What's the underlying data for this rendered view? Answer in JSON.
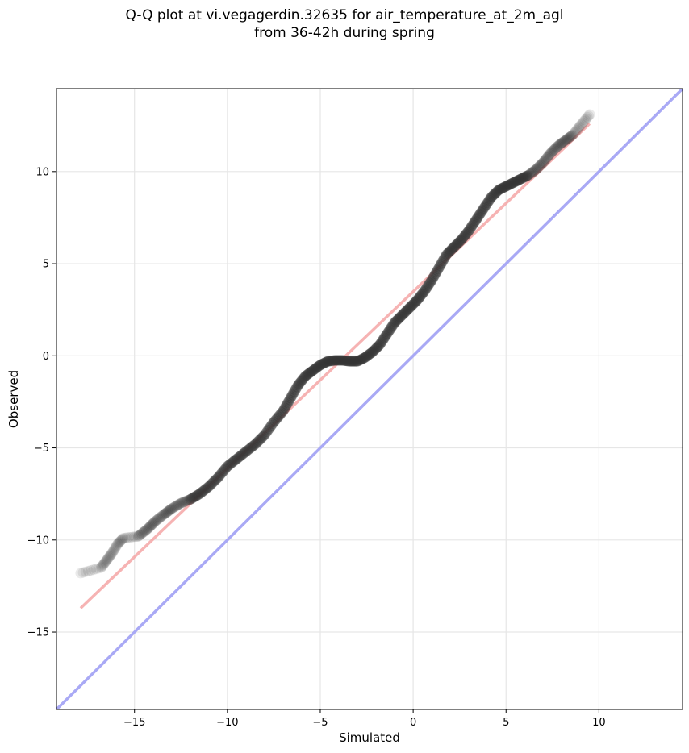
{
  "title": {
    "line1": "Q-Q plot at vi.vegagerdin.32635 for air_temperature_at_2m_agl",
    "line2": "from 36-42h during spring"
  },
  "chart_data": {
    "type": "scatter",
    "xlabel": "Simulated",
    "ylabel": "Observed",
    "xlim": [
      -19.2,
      14.5
    ],
    "ylim": [
      -19.2,
      14.5
    ],
    "xticks": [
      -15,
      -10,
      -5,
      0,
      5,
      10
    ],
    "yticks": [
      -15,
      -10,
      -5,
      0,
      5,
      10
    ],
    "xtick_labels": [
      "−15",
      "−10",
      "−5",
      "0",
      "5",
      "10"
    ],
    "ytick_labels": [
      "−15",
      "−10",
      "−5",
      "0",
      "5",
      "10"
    ],
    "grid": true,
    "points": {
      "x": [
        -17.9,
        -16.8,
        -16.5,
        -16.2,
        -15.9,
        -15.6,
        -14.8,
        -14.3,
        -13.9,
        -13.4,
        -13.0,
        -12.5,
        -12.0,
        -11.5,
        -11.0,
        -10.5,
        -10.0,
        -9.5,
        -9.0,
        -8.5,
        -8.0,
        -7.5,
        -7.0,
        -6.6,
        -6.2,
        -5.8,
        -5.4,
        -5.0,
        -4.6,
        -4.2,
        -3.8,
        -3.4,
        -3.0,
        -2.6,
        -2.2,
        -1.8,
        -1.4,
        -1.0,
        -0.6,
        -0.2,
        0.2,
        0.6,
        1.0,
        1.4,
        1.8,
        2.2,
        2.6,
        3.0,
        3.4,
        3.8,
        4.2,
        4.6,
        5.0,
        5.4,
        5.8,
        6.2,
        6.6,
        7.0,
        7.4,
        7.8,
        8.2,
        8.6,
        9.0,
        9.5
      ],
      "y": [
        -11.8,
        -11.5,
        -11.1,
        -10.7,
        -10.2,
        -9.9,
        -9.8,
        -9.4,
        -9.0,
        -8.6,
        -8.3,
        -8.0,
        -7.8,
        -7.5,
        -7.1,
        -6.6,
        -6.0,
        -5.6,
        -5.2,
        -4.8,
        -4.3,
        -3.6,
        -3.0,
        -2.3,
        -1.6,
        -1.1,
        -0.8,
        -0.5,
        -0.3,
        -0.25,
        -0.25,
        -0.3,
        -0.3,
        -0.1,
        0.2,
        0.6,
        1.2,
        1.8,
        2.2,
        2.6,
        3.0,
        3.5,
        4.1,
        4.8,
        5.5,
        5.9,
        6.3,
        6.8,
        7.4,
        8.0,
        8.6,
        9.0,
        9.2,
        9.4,
        9.6,
        9.8,
        10.1,
        10.5,
        11.0,
        11.4,
        11.7,
        12.0,
        12.5,
        13.1
      ]
    },
    "fit_line": {
      "x": [
        -17.9,
        9.5
      ],
      "y": [
        -13.7,
        12.6
      ],
      "color": "#f4a6a6"
    },
    "identity_line": {
      "x": [
        -19.2,
        14.5
      ],
      "y": [
        -19.2,
        14.5
      ],
      "color": "#a9a9f5"
    }
  }
}
